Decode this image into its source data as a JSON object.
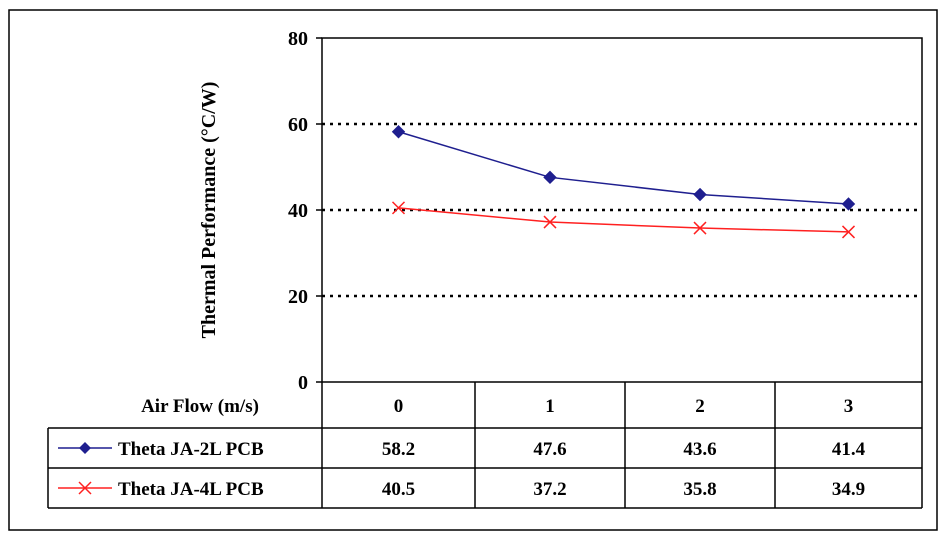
{
  "chart_data": {
    "type": "line",
    "ylabel": "Thermal Performance (°C/W)",
    "ylim": [
      0,
      80
    ],
    "yticks": [
      0,
      20,
      40,
      60,
      80
    ],
    "grid": "dotted horizontal at 20, 40, 60",
    "table_header_label": "Air Flow (m/s)",
    "categories": [
      "0",
      "1",
      "2",
      "3"
    ],
    "series": [
      {
        "name": "Theta JA-2L PCB",
        "values": [
          58.2,
          47.6,
          43.6,
          41.4
        ],
        "value_labels": [
          "58.2",
          "47.6",
          "43.6",
          "41.4"
        ],
        "color": "#1f1f8f",
        "marker": "diamond"
      },
      {
        "name": "Theta JA-4L PCB",
        "values": [
          40.5,
          37.2,
          35.8,
          34.9
        ],
        "value_labels": [
          "40.5",
          "37.2",
          "35.8",
          "34.9"
        ],
        "color": "#ff2020",
        "marker": "x"
      }
    ]
  }
}
